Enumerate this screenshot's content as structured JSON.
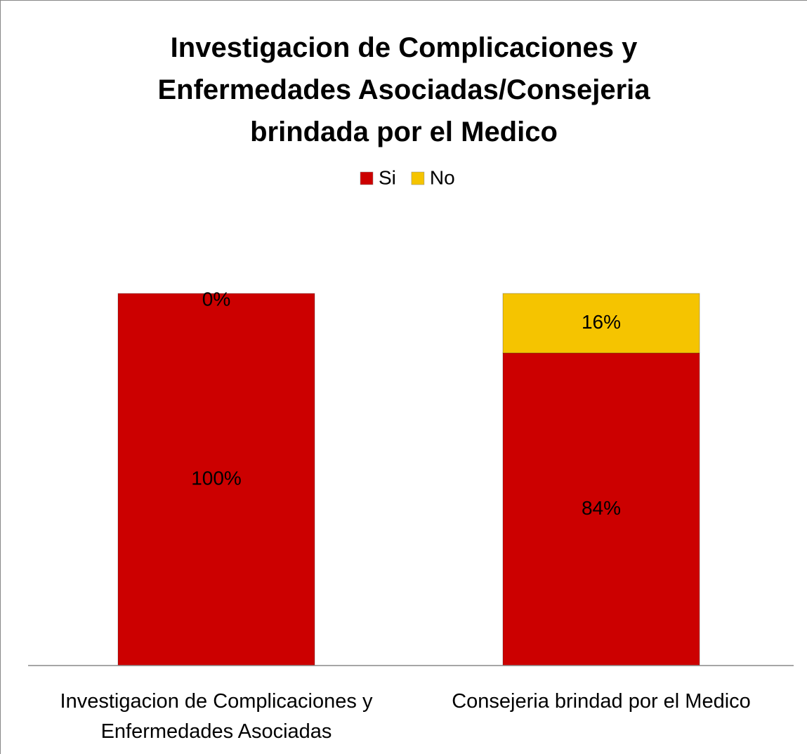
{
  "chart_data": {
    "type": "stacked_bar",
    "title": "Investigacion de Complicaciones y Enfermedades Asociadas/Consejeria brindada por el Medico",
    "categories": [
      "Investigacion de Complicaciones y Enfermedades Asociadas",
      "Consejeria brindad por el Medico"
    ],
    "series": [
      {
        "name": "Si",
        "color": "#cc0000",
        "values": [
          100,
          84
        ],
        "value_labels": [
          "100%",
          "84%"
        ]
      },
      {
        "name": "No",
        "color": "#f5c400",
        "values": [
          0,
          16
        ],
        "value_labels": [
          "0%",
          "16%"
        ]
      }
    ],
    "legend": "top"
  }
}
